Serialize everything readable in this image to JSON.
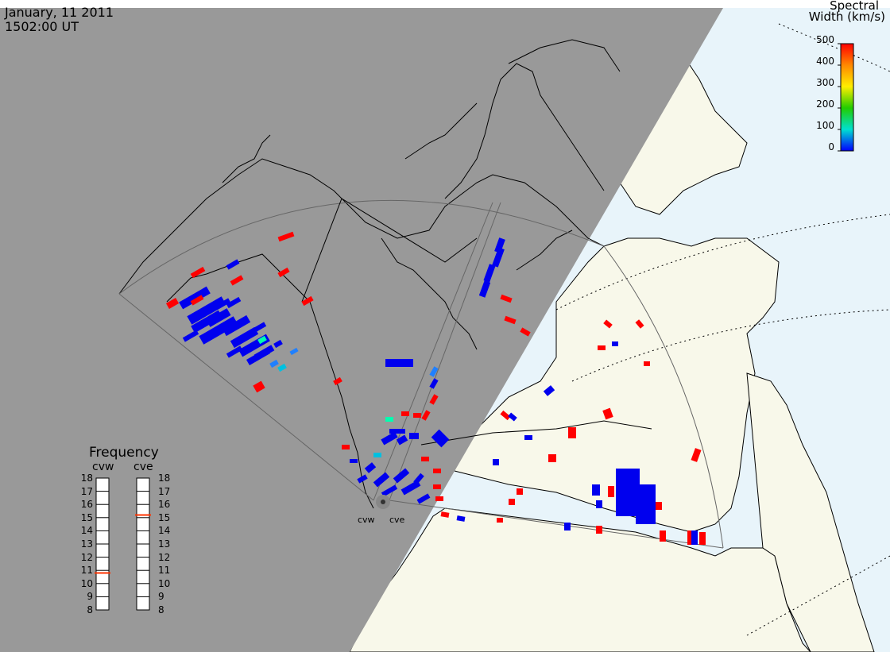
{
  "header": {
    "date": "January, 11 2011",
    "time": "1502:00 UT"
  },
  "colorbar": {
    "title_line1": "Spectral",
    "title_line2": "Width (km/s)",
    "ticks": [
      "500",
      "400",
      "300",
      "200",
      "100",
      "0"
    ],
    "colors": [
      "#ff0000",
      "#ff8800",
      "#ffee00",
      "#22cc00",
      "#00e0d0",
      "#0000ff"
    ]
  },
  "frequency": {
    "title": "Frequency",
    "radars": [
      {
        "name": "cvw",
        "value": 10.8
      },
      {
        "name": "cve",
        "value": 15.2
      }
    ],
    "scale": [
      "18",
      "17",
      "16",
      "15",
      "14",
      "13",
      "12",
      "11",
      "10",
      "9",
      "8"
    ],
    "marker_color": "#ff3300"
  },
  "map": {
    "night_color": "#999999",
    "day_land_color": "#f8f8ea",
    "ocean_color": "#e8f4fa",
    "radar_sites": [
      {
        "label": "cvw"
      },
      {
        "label": "cve"
      }
    ]
  }
}
